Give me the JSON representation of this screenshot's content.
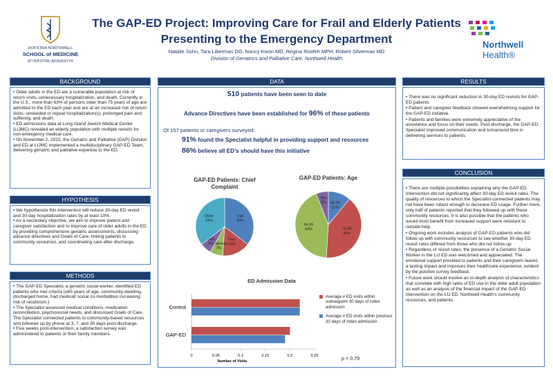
{
  "header": {
    "title": "The GAP-ED Project: Improving Care for Frail and Elderly Patients Presenting to the Emergency Department",
    "authors": "Natalie Sohn, Tara Liberman DO, Nancy Kwon MD, Regina Roofeh MPH, Robert Silverman MD",
    "affiliation": "Division of Geriatrics and Palliative Care, Northwell Health",
    "logo_left": [
      "HOFSTRA NORTHWELL",
      "SCHOOL of MEDICINE",
      "AT HOFSTRA UNIVERSITY®"
    ],
    "logo_right": [
      "Northwell",
      "Health®"
    ]
  },
  "sections": {
    "background": {
      "heading": "BACKGROUND",
      "items": [
        "Older adults in the ED are a vulnerable population at risk of return visits, unnecessary hospitalization, and death. Currently in the U.S., more than 63% of persons older than 75 years of age are admitted to the ED each year and are at an increased risk of return visits, unneeded or repeat hospitalization(s), prolonged pain and suffering, and death.",
        "ED admissions data at Long Island Jewish Medical Center (LIJMC) revealed an elderly population with multiple revisits for non-emergency medical care.",
        "On November 2, 2015, the Geriatric and Palliative (GAP) Division and ED at LIJMC implemented a multidisciplinary GAP-ED Team, delivering geriatric and palliative expertise to the ED."
      ]
    },
    "hypothesis": {
      "heading": "HYPOTHESIS",
      "items": [
        "We hypothesize this intervention will reduce 30-day ED revisit and 30-day hospitalization rates by at least 10%.",
        "As a secondary objective, we aim to improve patient and caregiver satisfaction and to improve care of older adults in the ED by providing comprehensive geriatric assessments, discussing advance directives and Goals of Care, linking patients to community resources, and coordinating care after discharge."
      ]
    },
    "methods": {
      "heading": "METHODS",
      "items": [
        "The GAP-ED Specialist, a geriatric social worker, identified ED patients who met criteria (≥65 years of age, community-dwelling, discharged home, had medical/ social co-morbidities increasing risk of recidivism.)",
        "The Specialist assessed medical conditions, medication reconciliation, psychosocial needs, and discussed Goals of Care. The Specialist connected patients to community-based resources and followed up by phone at 3, 7, and 30 days post-discharge.",
        "Five weeks post-intervention, a satisfaction survey was administered to patients or their family members."
      ]
    },
    "results": {
      "heading": "RESULTS",
      "items": [
        "There was no significant reduction in 30-day ED revisits for GAP-ED patients",
        "Patient and caregiver feedback showed overwhelming support for the GAP-ED initiative",
        "Patients and families were extremely appreciative of the assistance and focus on their needs. Post-discharge, the GAP-ED Specialist improved communication and turnaround time in delivering services to patients."
      ]
    },
    "conclusion": {
      "heading": "CONCLUSION",
      "items": [
        "There are multiple possibilities explaining why the GAP-ED Intervention did not significantly affect 30-day ED revisit rates. The quality of resources to which the Specialist connected patients may not have been robust enough to decrease ED usage. Further more, only half of patients reported that they followed up with these community resources. It is also possible that the patients who would most benefit from increased support were resistant to outside help.",
        "Ongoing work includes analysis of GAP-ED patients who did follow up with community resources to see whether 30-day ED revisit rates differed from those who did not follow up",
        "Regardless of revisit rates, the presence of a Geriatric Social Worker in the LIJ ED was welcomed and appreciated. The emotional support provided to patients and their caregivers leaves a lasting impact and improves their healthcare experience, evident by the positive survey feedback.",
        "Future work should involve an in-depth analysis of characteristics that correlate with high rates of ED use in the older adult population as well as an analysis of the financial impact of the GAP-ED intervention on the LIJ ED, Northwell Health’s community resources, and patients."
      ]
    }
  },
  "data": {
    "heading": "DATA",
    "highlights": [
      {
        "emph": "510",
        "after": " patients have been seen to date"
      },
      {
        "before": "Advance Directives have been established for ",
        "emph": "96%",
        "after": " of these patients"
      }
    ],
    "survey_intro": "Of 157 patients or caregivers surveyed:",
    "survey": [
      {
        "emph": "91%",
        "after": " found the Specialist helpful in providing support and resources"
      },
      {
        "emph": "86%",
        "after": " believe all ED’s should have this initiative"
      }
    ]
  },
  "chart_data": [
    {
      "type": "pie",
      "title": "GAP-ED Patients: Chief Complaint",
      "categories": [
        "Fall",
        "Pain",
        "Weakness",
        "AMS",
        "Other"
      ],
      "values": [
        34,
        15,
        7,
        6,
        34
      ],
      "value_labels": [
        "34%",
        "15%",
        "7%",
        "6%",
        "34%"
      ],
      "colors": [
        "#4f81bd",
        "#c0504d",
        "#9bbb59",
        "#8064a2",
        "#4bacc6"
      ]
    },
    {
      "type": "pie",
      "title": "GAP-ED Patients: Age",
      "categories": [
        "65-75",
        "76-85",
        "86-95",
        "95+"
      ],
      "values": [
        11,
        40,
        43,
        6
      ],
      "value_labels": [
        "11%",
        "40%",
        "43%",
        "6%"
      ],
      "colors": [
        "#4f81bd",
        "#c0504d",
        "#9bbb59",
        "#8064a2"
      ]
    },
    {
      "type": "bar",
      "orientation": "horizontal",
      "title": "ED Admission Data",
      "categories": [
        "Control",
        "GAP-ED"
      ],
      "series": [
        {
          "name": "Average # ED visits within subsequent 30 days of index admission",
          "color": "#c0504d",
          "values": [
            0.22,
            0.2
          ]
        },
        {
          "name": "Average # ED visits within previous 30 days of index admission",
          "color": "#4f81bd",
          "values": [
            0.22,
            0.19
          ]
        }
      ],
      "xlim": [
        0,
        0.25
      ],
      "xticks": [
        0,
        0.05,
        0.1,
        0.15,
        0.2,
        0.25
      ],
      "xlabel": "Number of Visits",
      "annotations": [
        "p = 0.79"
      ],
      "legend": "right"
    }
  ]
}
